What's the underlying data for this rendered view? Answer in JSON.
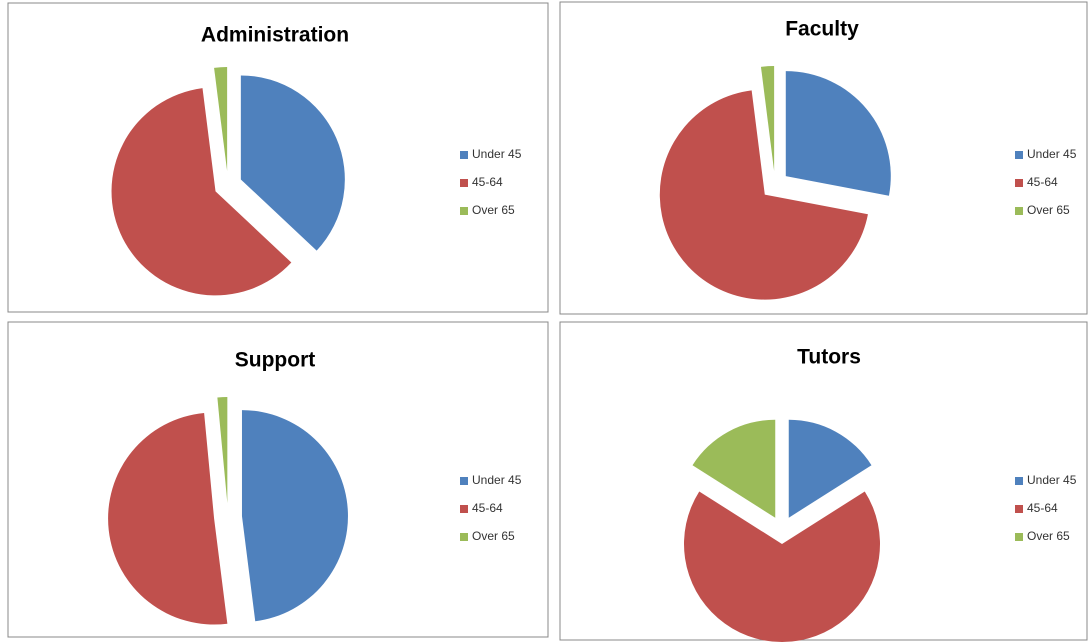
{
  "chart_data": [
    {
      "type": "pie",
      "title": "Administration",
      "categories": [
        "Under 45",
        "45-64",
        "Over 65"
      ],
      "values": [
        37,
        61,
        2
      ],
      "colors": [
        "#4f81bd",
        "#c0504d",
        "#9bbb59"
      ]
    },
    {
      "type": "pie",
      "title": "Faculty",
      "categories": [
        "Under 45",
        "45-64",
        "Over 65"
      ],
      "values": [
        28,
        70,
        2
      ],
      "colors": [
        "#4f81bd",
        "#c0504d",
        "#9bbb59"
      ]
    },
    {
      "type": "pie",
      "title": "Support",
      "categories": [
        "Under 45",
        "45-64",
        "Over 65"
      ],
      "values": [
        48,
        50.5,
        1.5
      ],
      "colors": [
        "#4f81bd",
        "#c0504d",
        "#9bbb59"
      ]
    },
    {
      "type": "pie",
      "title": "Tutors",
      "categories": [
        "Under 45",
        "45-64",
        "Over 65"
      ],
      "values": [
        16,
        68,
        16
      ],
      "colors": [
        "#4f81bd",
        "#c0504d",
        "#9bbb59"
      ]
    }
  ]
}
